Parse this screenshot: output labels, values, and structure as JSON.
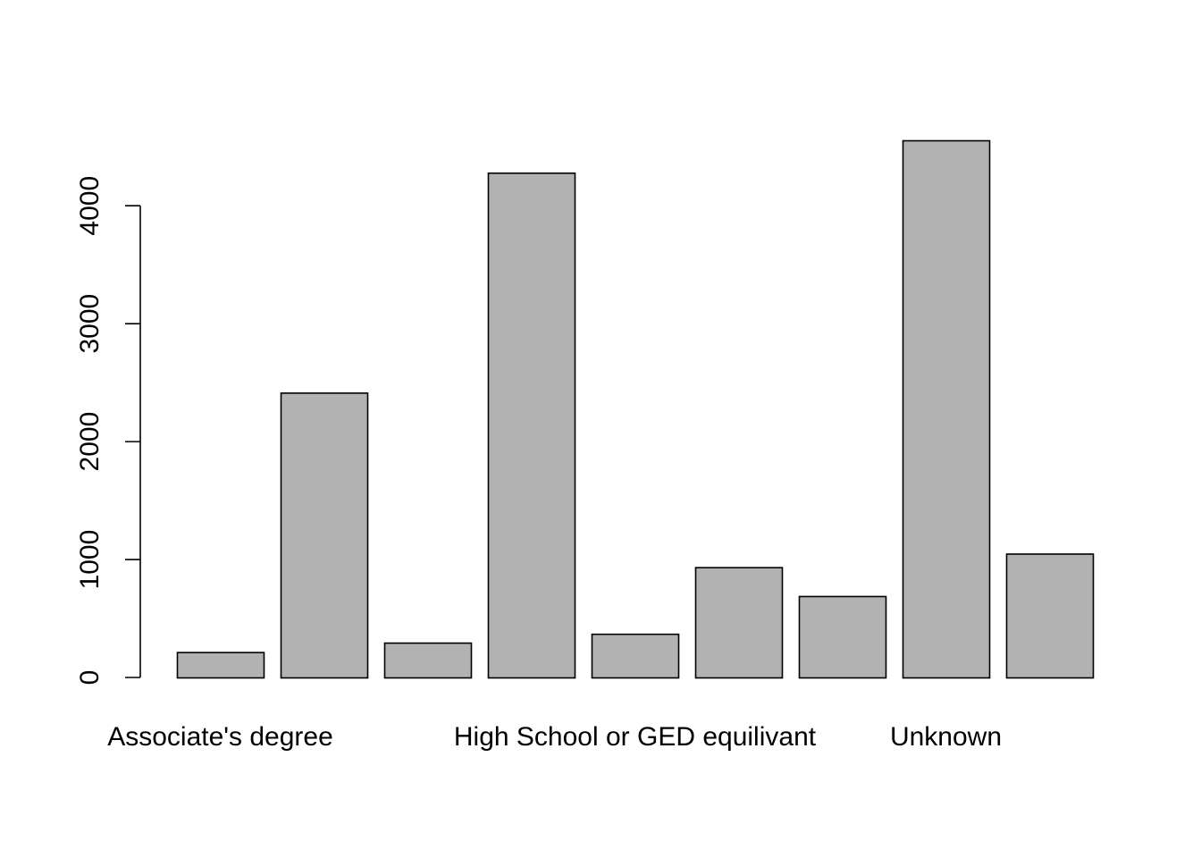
{
  "chart_data": {
    "type": "bar",
    "title": "",
    "xlabel": "",
    "ylabel": "",
    "categories": [
      "Associate's degree",
      "",
      "",
      "",
      "High School or GED equilivant",
      "",
      "",
      "Unknown",
      ""
    ],
    "values": [
      215,
      2415,
      295,
      4280,
      370,
      935,
      690,
      4555,
      1050
    ],
    "ylim": [
      0,
      4555
    ],
    "yticks": [
      0,
      1000,
      2000,
      3000,
      4000
    ],
    "bar_color": "#b2b2b2",
    "border_color": "#000000",
    "grid": false,
    "legend": "none"
  }
}
